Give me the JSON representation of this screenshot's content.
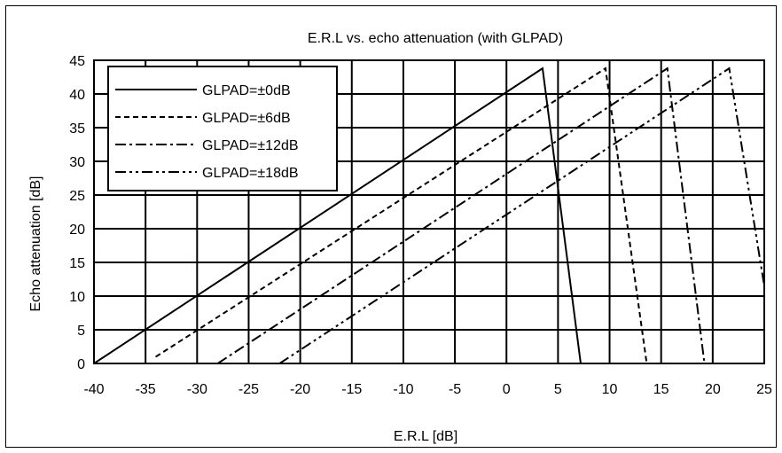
{
  "chart_data": {
    "type": "line",
    "title": "E.R.L vs. echo attenuation (with GLPAD)",
    "xlabel": "E.R.L [dB]",
    "ylabel": "Echo attenuation  [dB]",
    "xlim": [
      -40,
      25
    ],
    "ylim": [
      0,
      45
    ],
    "x_ticks": [
      -40,
      -35,
      -30,
      -25,
      -20,
      -15,
      -10,
      -5,
      0,
      5,
      10,
      15,
      20,
      25
    ],
    "y_ticks": [
      0,
      5,
      10,
      15,
      20,
      25,
      30,
      35,
      40,
      45
    ],
    "grid": true,
    "legend_position": "top-left",
    "series": [
      {
        "name": "GLPAD=±0dB",
        "dash": "solid",
        "x": [
          -40,
          3.5,
          7.2
        ],
        "y": [
          0,
          43.8,
          0
        ]
      },
      {
        "name": "GLPAD=±6dB",
        "dash": "dashed",
        "x": [
          -34,
          9.6,
          13.6
        ],
        "y": [
          1,
          43.8,
          0
        ]
      },
      {
        "name": "GLPAD=±12dB",
        "dash": "dash-dot",
        "x": [
          -28,
          15.6,
          19.2
        ],
        "y": [
          0,
          43.8,
          0
        ]
      },
      {
        "name": "GLPAD=±18dB",
        "dash": "dash-dot-dot",
        "x": [
          -22,
          21.6,
          25
        ],
        "y": [
          0,
          43.8,
          11.5
        ]
      }
    ]
  }
}
